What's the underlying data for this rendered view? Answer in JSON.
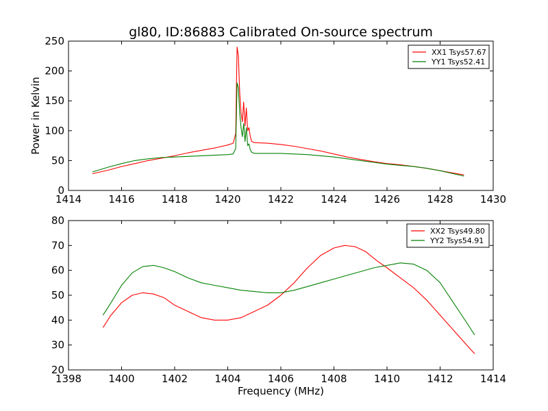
{
  "chart_data": [
    {
      "type": "line",
      "title": "gl80, ID:86883 Calibrated On-source spectrum",
      "xlabel": "",
      "ylabel": "Power in Kelvin",
      "xlim": [
        1414,
        1430
      ],
      "ylim": [
        0,
        250
      ],
      "xticks": [
        "1414",
        "1416",
        "1418",
        "1420",
        "1422",
        "1424",
        "1426",
        "1428",
        "1430"
      ],
      "yticks": [
        "0",
        "50",
        "100",
        "150",
        "200",
        "250"
      ],
      "legend_position": "top-right",
      "series": [
        {
          "name": "XX1 Tsys57.67",
          "color": "#ff0000",
          "x": [
            1414.9,
            1415.5,
            1416.0,
            1416.5,
            1417.0,
            1417.5,
            1418.0,
            1418.5,
            1419.0,
            1419.5,
            1420.0,
            1420.2,
            1420.3,
            1420.35,
            1420.4,
            1420.45,
            1420.5,
            1420.55,
            1420.6,
            1420.65,
            1420.7,
            1420.75,
            1420.8,
            1420.85,
            1420.9,
            1421.0,
            1421.5,
            1422.0,
            1422.5,
            1423.0,
            1423.5,
            1424.0,
            1424.5,
            1425.0,
            1425.5,
            1426.0,
            1426.5,
            1427.0,
            1427.5,
            1428.0,
            1428.5,
            1428.9
          ],
          "values": [
            28,
            34,
            40,
            45,
            50,
            54,
            58,
            63,
            67,
            71,
            76,
            79,
            95,
            240,
            225,
            165,
            130,
            115,
            148,
            108,
            138,
            100,
            105,
            90,
            82,
            80,
            79,
            77,
            74,
            70,
            66,
            61,
            56,
            52,
            48,
            45,
            43,
            40,
            37,
            33,
            29,
            26
          ]
        },
        {
          "name": "YY1 Tsys52.41",
          "color": "#008000",
          "x": [
            1414.9,
            1415.5,
            1416.0,
            1416.5,
            1417.0,
            1417.5,
            1418.0,
            1418.5,
            1419.0,
            1419.5,
            1420.0,
            1420.2,
            1420.3,
            1420.35,
            1420.4,
            1420.45,
            1420.5,
            1420.55,
            1420.6,
            1420.65,
            1420.7,
            1420.75,
            1420.8,
            1420.85,
            1420.9,
            1421.0,
            1421.5,
            1422.0,
            1422.5,
            1423.0,
            1423.5,
            1424.0,
            1424.5,
            1425.0,
            1425.5,
            1426.0,
            1426.5,
            1427.0,
            1427.5,
            1428.0,
            1428.5,
            1428.9
          ],
          "values": [
            31,
            39,
            45,
            50,
            53,
            55,
            56,
            57,
            58,
            59,
            60,
            61,
            70,
            180,
            172,
            130,
            105,
            90,
            112,
            82,
            105,
            75,
            78,
            68,
            64,
            62,
            62,
            62,
            61,
            60,
            58,
            56,
            53,
            50,
            47,
            44,
            42,
            40,
            37,
            33,
            28,
            24
          ]
        }
      ]
    },
    {
      "type": "line",
      "title": "",
      "xlabel": "Frequency (MHz)",
      "ylabel": "",
      "xlim": [
        1398,
        1414
      ],
      "ylim": [
        20,
        80
      ],
      "xticks": [
        "1398",
        "1400",
        "1402",
        "1404",
        "1406",
        "1408",
        "1410",
        "1412",
        "1414"
      ],
      "yticks": [
        "20",
        "30",
        "40",
        "50",
        "60",
        "70",
        "80"
      ],
      "legend_position": "top-right",
      "series": [
        {
          "name": "XX2 Tsys49.80",
          "color": "#ff0000",
          "x": [
            1399.3,
            1399.6,
            1400.0,
            1400.4,
            1400.8,
            1401.2,
            1401.6,
            1402.0,
            1402.5,
            1403.0,
            1403.5,
            1404.0,
            1404.5,
            1405.0,
            1405.5,
            1406.0,
            1406.5,
            1407.0,
            1407.5,
            1408.0,
            1408.4,
            1408.8,
            1409.2,
            1409.6,
            1410.0,
            1410.5,
            1411.0,
            1411.5,
            1412.0,
            1412.5,
            1413.0,
            1413.3
          ],
          "values": [
            37,
            42,
            47,
            50,
            51,
            50.5,
            49,
            46,
            43.5,
            41,
            40,
            40,
            41,
            43.5,
            46,
            50,
            55,
            61,
            66,
            69,
            70,
            69.5,
            67.5,
            64,
            61,
            57,
            53,
            48,
            42,
            36,
            30,
            26.5
          ]
        },
        {
          "name": "YY2 Tsys54.91",
          "color": "#008000",
          "x": [
            1399.3,
            1399.6,
            1400.0,
            1400.4,
            1400.8,
            1401.2,
            1401.6,
            1402.0,
            1402.5,
            1403.0,
            1403.5,
            1404.0,
            1404.5,
            1405.0,
            1405.5,
            1406.0,
            1406.5,
            1407.0,
            1407.5,
            1408.0,
            1408.5,
            1409.0,
            1409.5,
            1410.0,
            1410.5,
            1411.0,
            1411.5,
            1412.0,
            1412.5,
            1413.0,
            1413.3
          ],
          "values": [
            42,
            47,
            54,
            59,
            61.5,
            62,
            61,
            59.5,
            57,
            55,
            54,
            53,
            52,
            51.5,
            51,
            51,
            52,
            53.5,
            55,
            56.5,
            58,
            59.5,
            61,
            62,
            63,
            62.5,
            60,
            55,
            47,
            39,
            34
          ]
        }
      ]
    }
  ]
}
